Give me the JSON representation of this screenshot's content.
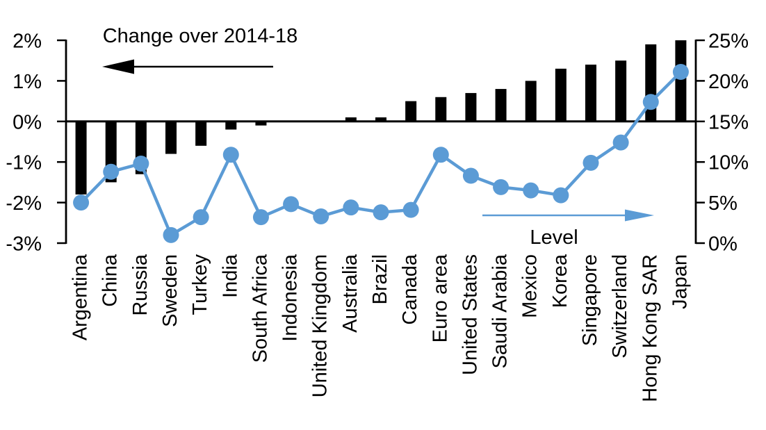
{
  "chart_data": {
    "type": "bar",
    "subtype": "dual-axis-bar-and-line",
    "title": "",
    "grid": false,
    "legend_position": "none",
    "categories": [
      "Argentina",
      "China",
      "Russia",
      "Sweden",
      "Turkey",
      "India",
      "South Africa",
      "Indonesia",
      "United Kingdom",
      "Australia",
      "Brazil",
      "Canada",
      "Euro area",
      "United States",
      "Saudi Arabia",
      "Mexico",
      "Korea",
      "Singapore",
      "Switzerland",
      "Hong Kong SAR",
      "Japan"
    ],
    "series": [
      {
        "name": "Change over 2014-18",
        "type": "bar",
        "axis": "left",
        "color": "#000000",
        "values": [
          -1.8,
          -1.5,
          -1.3,
          -0.8,
          -0.6,
          -0.2,
          -0.1,
          0,
          0,
          0.1,
          0.1,
          0.5,
          0.6,
          0.7,
          0.8,
          1.0,
          1.3,
          1.4,
          1.5,
          1.9,
          2.0
        ]
      },
      {
        "name": "Level",
        "type": "line",
        "axis": "right",
        "color": "#5B9BD5",
        "values": [
          5.0,
          8.8,
          9.8,
          1.0,
          3.2,
          10.9,
          3.2,
          4.8,
          3.3,
          4.4,
          3.8,
          4.1,
          10.9,
          8.3,
          6.9,
          6.5,
          5.9,
          9.9,
          12.4,
          17.4,
          21.1
        ]
      }
    ],
    "left_axis": {
      "ticks": [
        "2%",
        "1%",
        "0%",
        "-1%",
        "-2%",
        "-3%"
      ],
      "values": [
        2,
        1,
        0,
        -1,
        -2,
        -3
      ],
      "range": [
        -3,
        2
      ]
    },
    "right_axis": {
      "ticks": [
        "25%",
        "20%",
        "15%",
        "10%",
        "5%",
        "0%"
      ],
      "values": [
        25,
        20,
        15,
        10,
        5,
        0
      ],
      "range": [
        0,
        25
      ]
    },
    "annotations": {
      "bar_label": "Change over 2014-18",
      "line_label": "Level"
    }
  },
  "colors": {
    "bar": "#000000",
    "line": "#5B9BD5",
    "text": "#000000",
    "background": "#FFFFFF"
  }
}
